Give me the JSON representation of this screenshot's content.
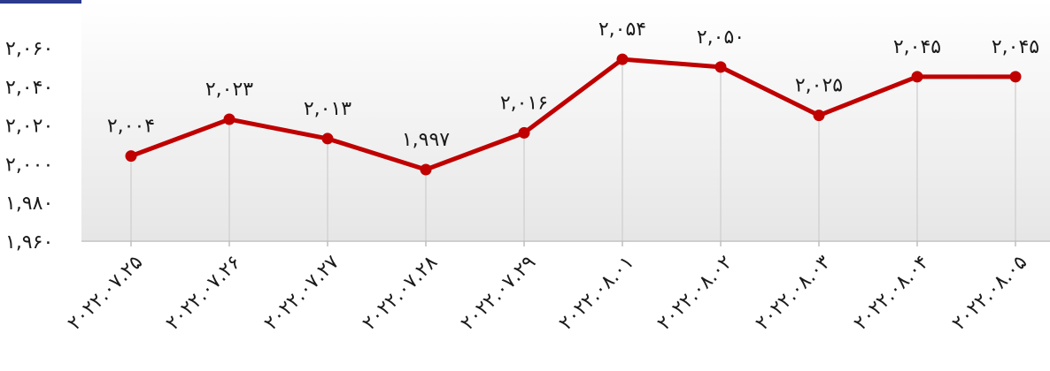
{
  "chart_data": {
    "type": "line",
    "categories": [
      "۲۰۲۲.۰۷.۲۵",
      "۲۰۲۲.۰۷.۲۶",
      "۲۰۲۲.۰۷.۲۷",
      "۲۰۲۲.۰۷.۲۸",
      "۲۰۲۲.۰۷.۲۹",
      "۲۰۲۲.۰۸.۰۱",
      "۲۰۲۲.۰۸.۰۲",
      "۲۰۲۲.۰۸.۰۳",
      "۲۰۲۲.۰۸.۰۴",
      "۲۰۲۲.۰۸.۰۵"
    ],
    "values": [
      2004,
      2023,
      2013,
      1997,
      2016,
      2054,
      2050,
      2025,
      2045,
      2045
    ],
    "data_labels": [
      "۲,۰۰۴",
      "۲,۰۲۳",
      "۲,۰۱۳",
      "۱,۹۹۷",
      "۲,۰۱۶",
      "۲,۰۵۴",
      "۲,۰۵۰",
      "۲,۰۲۵",
      "۲,۰۴۵",
      "۲,۰۴۵"
    ],
    "ylim": [
      1960,
      2060
    ],
    "yticks": [
      1960,
      1980,
      2000,
      2020,
      2040,
      2060
    ],
    "ytick_labels": [
      "۱,۹۶۰",
      "۱,۹۸۰",
      "۲,۰۰۰",
      "۲,۰۲۰",
      "۲,۰۴۰",
      "۲,۰۶۰"
    ],
    "grid": "vertical drop lines per category",
    "legend": "none",
    "colors": {
      "line": "#c00000",
      "background_top": "#ffffff",
      "background_bottom": "#e6e6e6",
      "top_bar": "#2b3a8c",
      "axis": "#bfbfbf"
    }
  }
}
